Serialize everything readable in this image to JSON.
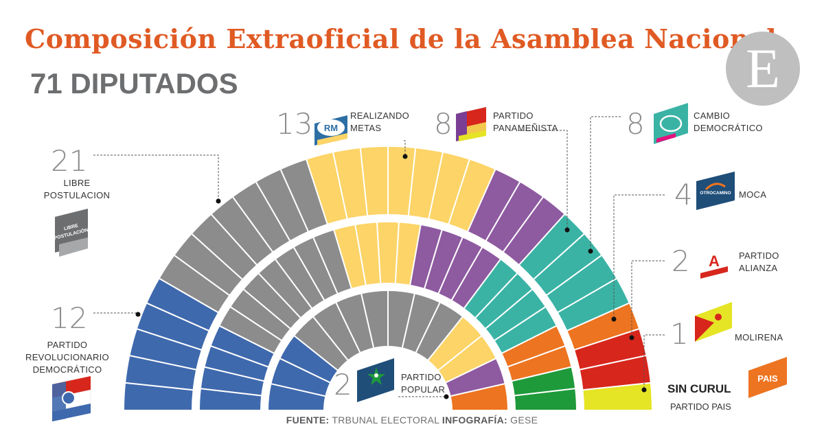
{
  "title": "Composición Extraoficial  de la Asamblea Nacional",
  "subtitle": "71 DIPUTADOS",
  "logo_letter": "E",
  "footer": {
    "source_label": "FUENTE:",
    "source_text": " TRBUNAL ELECTORAL ",
    "infographic_label": "INFOGRAFÍA:",
    "infographic_text": " GESE"
  },
  "no_seat": {
    "label": "SIN CURUL",
    "party": "PARTIDO PAIS",
    "badge": "PAIS"
  },
  "badges": {
    "libre": [
      "LIBRE",
      "POSTULACIÓN"
    ],
    "rm": "RM",
    "moca": "OTROCAMINO",
    "alianza": "A"
  },
  "colors": {
    "title": "#e05a24",
    "libre": "#8c8c8c",
    "prd": "#3f69ad",
    "rm": "#fcd467",
    "panamenista": "#8e5aa0",
    "cd": "#3ab3a5",
    "moca": "#ed7420",
    "alianza": "#d7261c",
    "molirena": "#e5e425",
    "popular": "#1e9a3a"
  },
  "chart_data": {
    "type": "parliament",
    "total_seats": 71,
    "series": [
      {
        "key": "libre",
        "count": "21",
        "values": [
          21
        ],
        "labels": [
          "LIBRE",
          "POSTULACION"
        ]
      },
      {
        "key": "prd",
        "count": "12",
        "values": [
          12
        ],
        "labels": [
          "PARTIDO",
          "REVOLUCIONARIO",
          "DEMOCRÁTICO"
        ]
      },
      {
        "key": "rm",
        "count": "13",
        "values": [
          13
        ],
        "labels": [
          "REALIZANDO",
          "METAS"
        ]
      },
      {
        "key": "panamenista",
        "count": "8",
        "values": [
          8
        ],
        "labels": [
          "PARTIDO",
          "PANAMEÑISTA"
        ]
      },
      {
        "key": "cd",
        "count": "8",
        "values": [
          8
        ],
        "labels": [
          "CAMBIO",
          "DEMOCRÁTICO"
        ]
      },
      {
        "key": "moca",
        "count": "4",
        "values": [
          4
        ],
        "labels": [
          "MOCA"
        ]
      },
      {
        "key": "alianza",
        "count": "2",
        "values": [
          2
        ],
        "labels": [
          "PARTIDO",
          "ALIANZA"
        ]
      },
      {
        "key": "molirena",
        "count": "1",
        "values": [
          1
        ],
        "labels": [
          "MOLIRENA"
        ]
      },
      {
        "key": "popular",
        "count": "2",
        "values": [
          2
        ],
        "labels": [
          "PARTIDO",
          "POPULAR"
        ]
      }
    ],
    "rows": [
      [
        [
          "prd",
          5
        ],
        [
          "libre",
          7
        ],
        [
          "rm",
          7
        ],
        [
          "panamenista",
          3
        ],
        [
          "cd",
          4
        ],
        [
          "moca",
          1
        ],
        [
          "alianza",
          2
        ],
        [
          "molirena",
          1
        ]
      ],
      [
        [
          "prd",
          4
        ],
        [
          "libre",
          7
        ],
        [
          "rm",
          4
        ],
        [
          "panamenista",
          4
        ],
        [
          "cd",
          4
        ],
        [
          "moca",
          2
        ],
        [
          "popular",
          2
        ]
      ],
      [
        [
          "prd",
          3
        ],
        [
          "libre",
          7
        ],
        [
          "rm",
          2
        ],
        [
          "panamenista",
          1
        ],
        [
          "moca",
          1
        ]
      ]
    ]
  }
}
